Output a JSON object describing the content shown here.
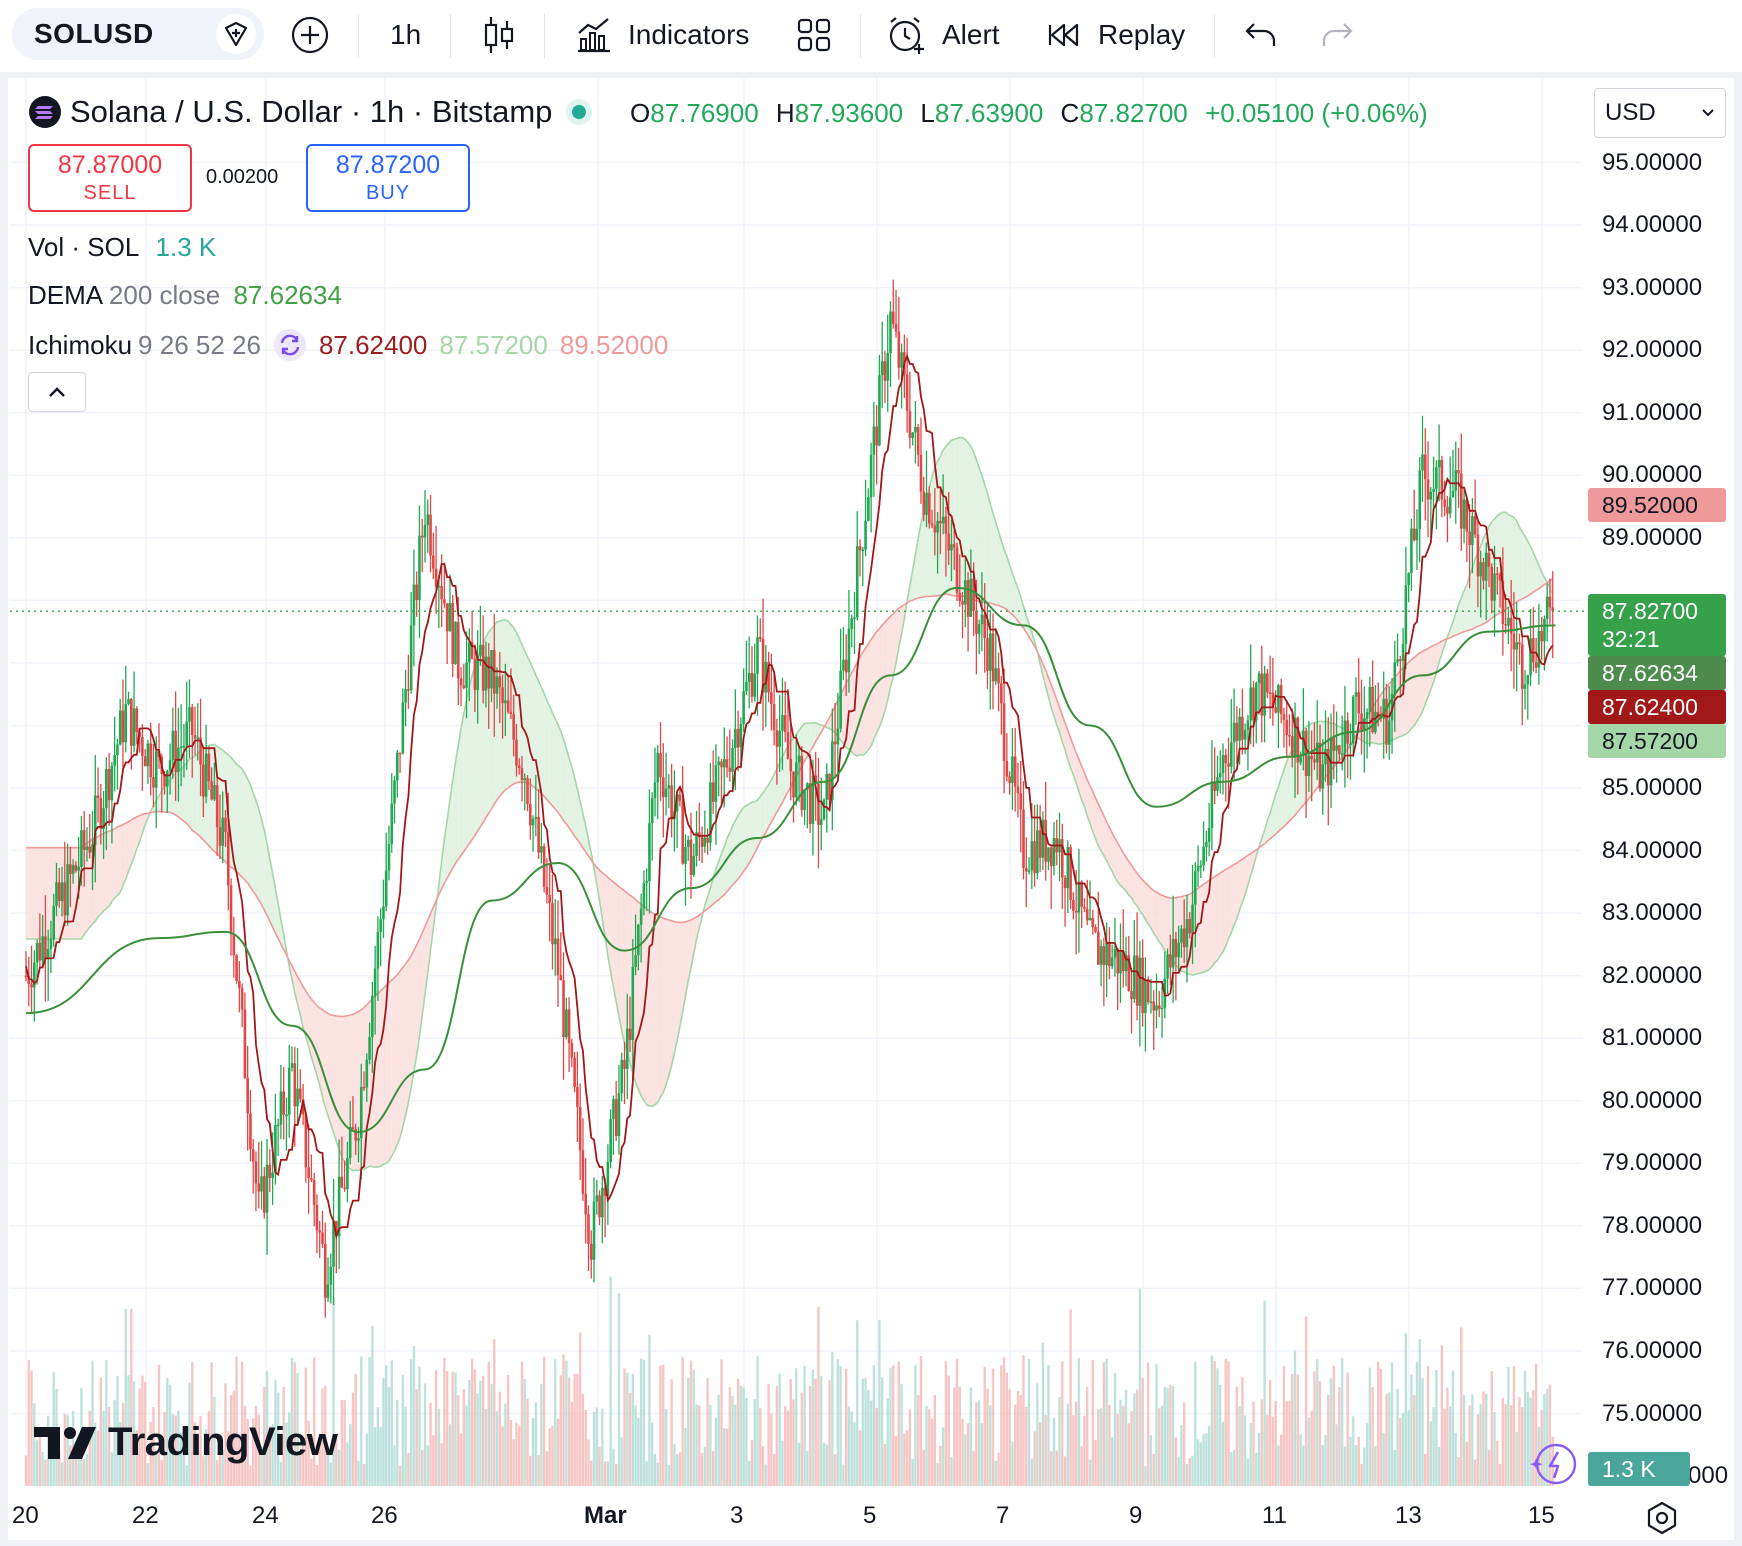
{
  "toolbar": {
    "symbol": "SOLUSD",
    "interval": "1h",
    "indicators_label": "Indicators",
    "alert_label": "Alert",
    "replay_label": "Replay"
  },
  "legend": {
    "title": "Solana / U.S. Dollar · 1h · Bitstamp",
    "open_key": "O",
    "open": "87.76900",
    "high_key": "H",
    "high": "87.93600",
    "low_key": "L",
    "low": "87.63900",
    "close_key": "C",
    "close": "87.82700",
    "change": "+0.05100 (+0.06%)"
  },
  "trade": {
    "sell_price": "87.87000",
    "sell_label": "SELL",
    "spread": "0.00200",
    "buy_price": "87.87200",
    "buy_label": "BUY"
  },
  "indicators": {
    "vol_name": "Vol · SOL",
    "vol_value": "1.3 K",
    "dema_name": "DEMA",
    "dema_params": "200 close",
    "dema_value": "87.62634",
    "ichi_name": "Ichimoku",
    "ichi_params": "9 26 52 26",
    "ichi_v1": "87.62400",
    "ichi_v2": "87.57200",
    "ichi_v3": "89.52000"
  },
  "currency": "USD",
  "price_axis": [
    "95.00000",
    "94.00000",
    "93.00000",
    "92.00000",
    "91.00000",
    "90.00000",
    "89.00000",
    "85.00000",
    "84.00000",
    "83.00000",
    "82.00000",
    "81.00000",
    "80.00000",
    "79.00000",
    "78.00000",
    "77.00000",
    "76.00000",
    "75.00000"
  ],
  "axis_bottom_partial": "000",
  "price_tags": {
    "ichi_span_b": "89.52000",
    "last": "87.82700",
    "countdown": "32:21",
    "dema": "87.62634",
    "conversion": "87.62400",
    "span_a": "87.57200",
    "volume": "1.3 K"
  },
  "time_axis": [
    "20",
    "22",
    "24",
    "26",
    "Mar",
    "3",
    "5",
    "7",
    "9",
    "11",
    "13",
    "15"
  ],
  "logo_text": "TradingView",
  "colors": {
    "up": "#22a853",
    "down": "#e04848",
    "accent": "#2962ff",
    "dema": "#3a8f3a",
    "conversion": "#a01818"
  },
  "chart_data": {
    "type": "candlestick",
    "symbol": "SOLUSD",
    "interval": "1h",
    "y_range": [
      74.5,
      95.5
    ],
    "close_path": [
      {
        "x": "Feb 20",
        "y": 82.0
      },
      {
        "x": "Feb 21",
        "y": 84.3
      },
      {
        "x": "Feb 21",
        "y": 86.2
      },
      {
        "x": "Feb 22",
        "y": 85.3
      },
      {
        "x": "Feb 22",
        "y": 85.9
      },
      {
        "x": "Feb 23",
        "y": 84.0
      },
      {
        "x": "Feb 23",
        "y": 78.2
      },
      {
        "x": "Feb 24",
        "y": 80.5
      },
      {
        "x": "Feb 24",
        "y": 77.3
      },
      {
        "x": "Feb 25",
        "y": 79.8
      },
      {
        "x": "Feb 25",
        "y": 84.5
      },
      {
        "x": "Feb 26",
        "y": 89.5
      },
      {
        "x": "Feb 26",
        "y": 87.0
      },
      {
        "x": "Feb 27",
        "y": 86.8
      },
      {
        "x": "Feb 27",
        "y": 85.3
      },
      {
        "x": "Feb 28",
        "y": 82.1
      },
      {
        "x": "Feb 28",
        "y": 77.8
      },
      {
        "x": "Mar 1",
        "y": 80.5
      },
      {
        "x": "Mar 1",
        "y": 85.5
      },
      {
        "x": "Mar 2",
        "y": 83.8
      },
      {
        "x": "Mar 2",
        "y": 85.3
      },
      {
        "x": "Mar 3",
        "y": 87.2
      },
      {
        "x": "Mar 3",
        "y": 85.3
      },
      {
        "x": "Mar 4",
        "y": 84.5
      },
      {
        "x": "Mar 4",
        "y": 88.5
      },
      {
        "x": "Mar 5",
        "y": 92.5
      },
      {
        "x": "Mar 5",
        "y": 89.8
      },
      {
        "x": "Mar 6",
        "y": 88.5
      },
      {
        "x": "Mar 6",
        "y": 87.2
      },
      {
        "x": "Mar 7",
        "y": 84.0
      },
      {
        "x": "Mar 7",
        "y": 84.2
      },
      {
        "x": "Mar 8",
        "y": 82.5
      },
      {
        "x": "Mar 8",
        "y": 82.2
      },
      {
        "x": "Mar 9",
        "y": 81.6
      },
      {
        "x": "Mar 9",
        "y": 83.0
      },
      {
        "x": "Mar 10",
        "y": 85.5
      },
      {
        "x": "Mar 10",
        "y": 86.6
      },
      {
        "x": "Mar 11",
        "y": 86.0
      },
      {
        "x": "Mar 11",
        "y": 85.2
      },
      {
        "x": "Mar 12",
        "y": 86.3
      },
      {
        "x": "Mar 12",
        "y": 86.1
      },
      {
        "x": "Mar 13",
        "y": 90.0
      },
      {
        "x": "Mar 13",
        "y": 89.7
      },
      {
        "x": "Mar 14",
        "y": 88.4
      },
      {
        "x": "Mar 14",
        "y": 87.0
      },
      {
        "x": "Mar 15",
        "y": 87.827
      }
    ],
    "dema_200": [
      {
        "x": "Feb 20",
        "y": 81.4
      },
      {
        "x": "Feb 22",
        "y": 82.6
      },
      {
        "x": "Feb 23",
        "y": 82.7
      },
      {
        "x": "Feb 24",
        "y": 81.2
      },
      {
        "x": "Feb 25",
        "y": 79.5
      },
      {
        "x": "Feb 26",
        "y": 80.5
      },
      {
        "x": "Feb 27",
        "y": 83.2
      },
      {
        "x": "Feb 28",
        "y": 83.8
      },
      {
        "x": "Mar 1",
        "y": 82.4
      },
      {
        "x": "Mar 2",
        "y": 83.4
      },
      {
        "x": "Mar 3",
        "y": 84.2
      },
      {
        "x": "Mar 4",
        "y": 85.1
      },
      {
        "x": "Mar 5",
        "y": 86.8
      },
      {
        "x": "Mar 6",
        "y": 88.2
      },
      {
        "x": "Mar 7",
        "y": 87.6
      },
      {
        "x": "Mar 8",
        "y": 86.0
      },
      {
        "x": "Mar 9",
        "y": 84.7
      },
      {
        "x": "Mar 10",
        "y": 85.1
      },
      {
        "x": "Mar 11",
        "y": 85.5
      },
      {
        "x": "Mar 12",
        "y": 85.9
      },
      {
        "x": "Mar 13",
        "y": 86.8
      },
      {
        "x": "Mar 14",
        "y": 87.5
      },
      {
        "x": "Mar 15",
        "y": 87.6
      }
    ],
    "last_price": 87.827
  }
}
